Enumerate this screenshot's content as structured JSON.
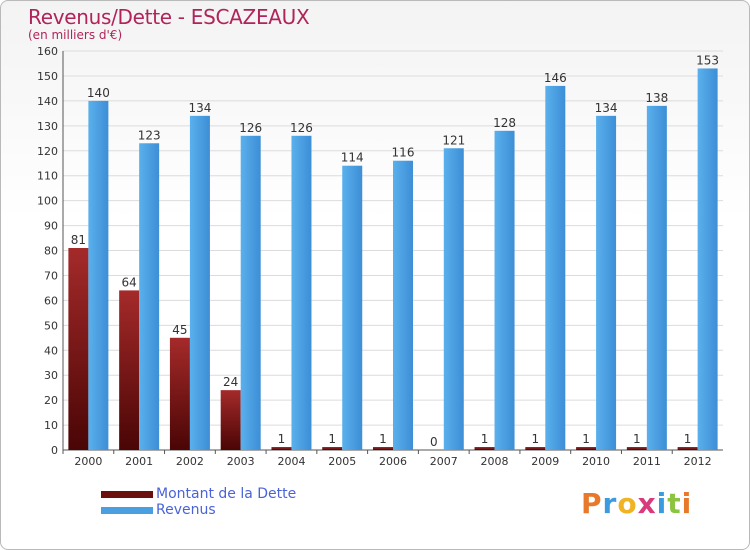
{
  "title": "Revenus/Dette - ESCAZEAUX",
  "subtitle": "(en milliers d'€)",
  "logo_text": "Proxiti",
  "colors": {
    "debt": "#8b1a1a",
    "revenue": "#4a9fe0",
    "title": "#b0245a",
    "legend_text": "#4a63d8"
  },
  "legend": [
    {
      "label": "Montant de la Dette",
      "color": "#6b0f0f"
    },
    {
      "label": "Revenus",
      "color": "#4a9fe0"
    }
  ],
  "chart_data": {
    "type": "bar",
    "title": "Revenus/Dette - ESCAZEAUX",
    "subtitle": "(en milliers d'€)",
    "categories": [
      "2000",
      "2001",
      "2002",
      "2003",
      "2004",
      "2005",
      "2006",
      "2007",
      "2008",
      "2009",
      "2010",
      "2011",
      "2012"
    ],
    "series": [
      {
        "name": "Montant de la Dette",
        "values": [
          81,
          64,
          45,
          24,
          1,
          1,
          1,
          0,
          1,
          1,
          1,
          1,
          1
        ]
      },
      {
        "name": "Revenus",
        "values": [
          140,
          123,
          134,
          126,
          126,
          114,
          116,
          121,
          128,
          146,
          134,
          138,
          153
        ]
      }
    ],
    "ylim": [
      0,
      160
    ],
    "yticks": [
      0,
      10,
      20,
      30,
      40,
      50,
      60,
      70,
      80,
      90,
      100,
      110,
      120,
      130,
      140,
      150,
      160
    ],
    "grid": true,
    "legend_position": "bottom-left"
  }
}
